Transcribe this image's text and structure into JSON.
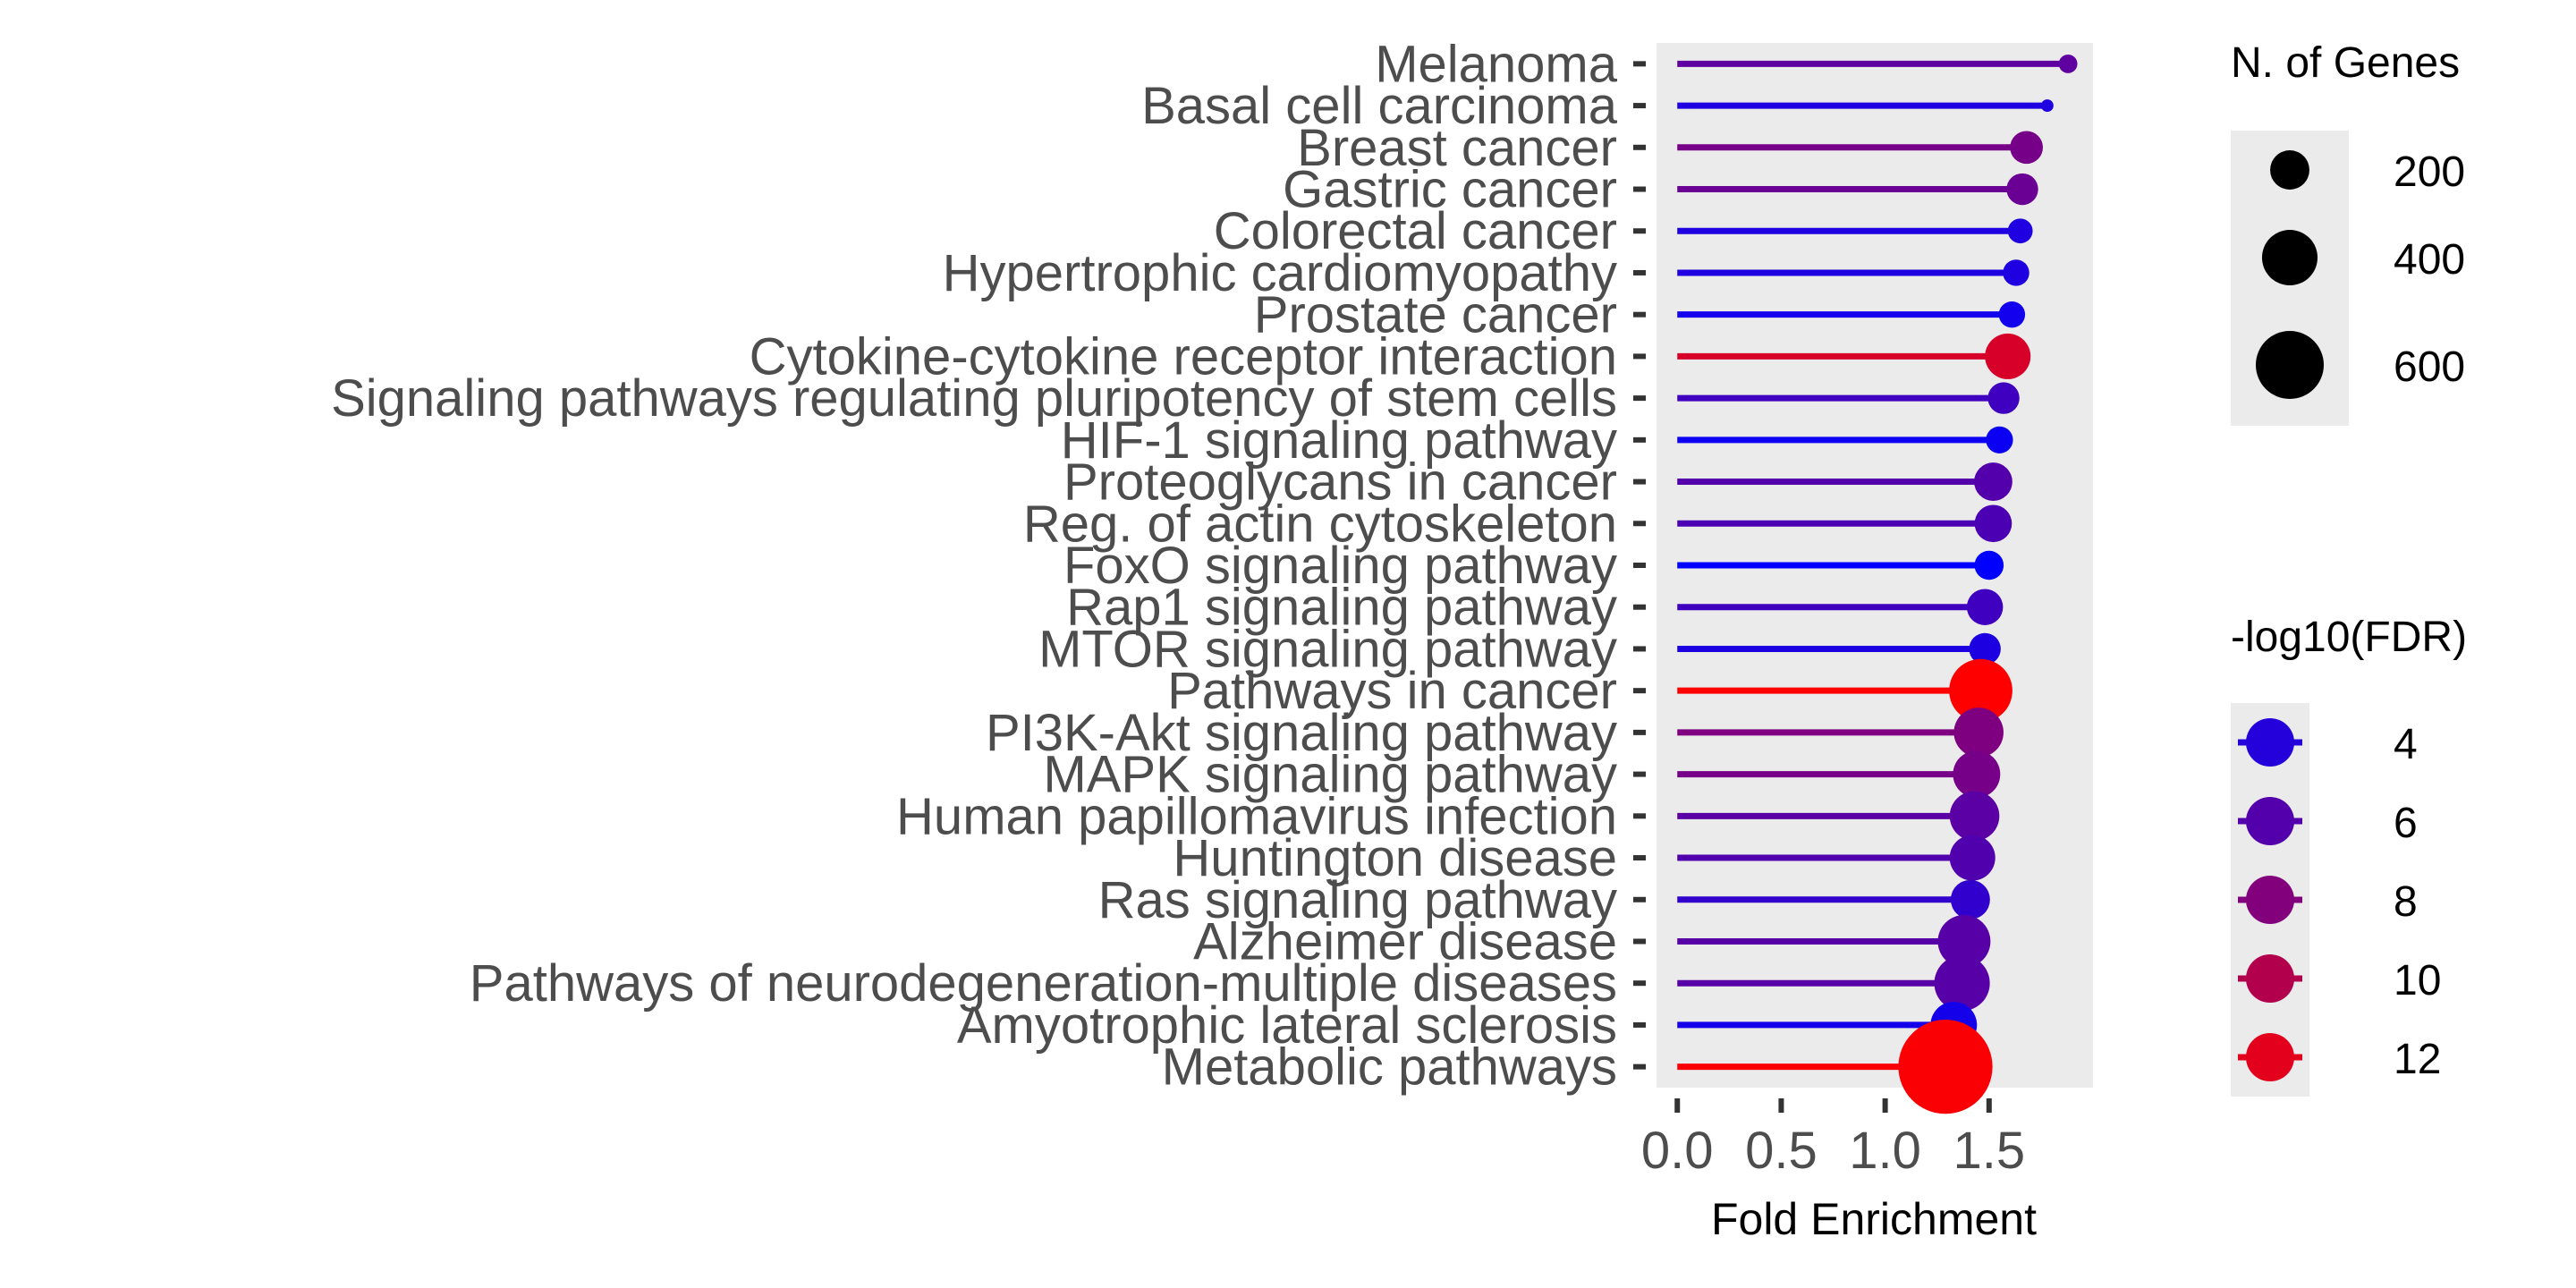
{
  "chart_data": {
    "type": "lollipop",
    "xlabel": "Fold Enrichment",
    "ylabel": "",
    "xlim": [
      -0.1,
      2.0
    ],
    "x_ticks": [
      {
        "value": 0.0,
        "label": "0.0"
      },
      {
        "value": 0.5,
        "label": "0.5"
      },
      {
        "value": 1.0,
        "label": "1.0"
      },
      {
        "value": 1.5,
        "label": "1.5"
      }
    ],
    "grid": false,
    "panel_background": "#ebebeb",
    "color_scale": {
      "low": "#0000ff",
      "high": "#ff0000",
      "min": 2.5,
      "max": 13.2
    },
    "pathways": [
      {
        "name": "Melanoma",
        "fold_enrichment": 1.88,
        "n_genes": 45,
        "neg_log10_fdr": 6.5
      },
      {
        "name": "Basal cell carcinoma",
        "fold_enrichment": 1.78,
        "n_genes": 20,
        "neg_log10_fdr": 3.8
      },
      {
        "name": "Breast cancer",
        "fold_enrichment": 1.68,
        "n_genes": 140,
        "neg_log10_fdr": 7.5
      },
      {
        "name": "Gastric cancer",
        "fold_enrichment": 1.66,
        "n_genes": 130,
        "neg_log10_fdr": 7.0
      },
      {
        "name": "Colorectal cancer",
        "fold_enrichment": 1.65,
        "n_genes": 80,
        "neg_log10_fdr": 3.8
      },
      {
        "name": "Hypertrophic cardiomyopathy",
        "fold_enrichment": 1.63,
        "n_genes": 90,
        "neg_log10_fdr": 3.8
      },
      {
        "name": "Prostate cancer",
        "fold_enrichment": 1.61,
        "n_genes": 90,
        "neg_log10_fdr": 3.3
      },
      {
        "name": "Cytokine-cytokine receptor interaction",
        "fold_enrichment": 1.59,
        "n_genes": 270,
        "neg_log10_fdr": 11.5
      },
      {
        "name": "Signaling pathways regulating pluripotency of stem cells",
        "fold_enrichment": 1.57,
        "n_genes": 130,
        "neg_log10_fdr": 5.2
      },
      {
        "name": "HIF-1 signaling pathway",
        "fold_enrichment": 1.55,
        "n_genes": 95,
        "neg_log10_fdr": 3.0
      },
      {
        "name": "Proteoglycans in cancer",
        "fold_enrichment": 1.52,
        "n_genes": 190,
        "neg_log10_fdr": 6.0
      },
      {
        "name": "Reg. of actin cytoskeleton",
        "fold_enrichment": 1.52,
        "n_genes": 180,
        "neg_log10_fdr": 5.7
      },
      {
        "name": "FoxO signaling pathway",
        "fold_enrichment": 1.5,
        "n_genes": 110,
        "neg_log10_fdr": 2.5
      },
      {
        "name": "Rap1 signaling pathway",
        "fold_enrichment": 1.48,
        "n_genes": 170,
        "neg_log10_fdr": 5.2
      },
      {
        "name": "MTOR signaling pathway",
        "fold_enrichment": 1.48,
        "n_genes": 130,
        "neg_log10_fdr": 3.7
      },
      {
        "name": "Pathways in cancer",
        "fold_enrichment": 1.46,
        "n_genes": 520,
        "neg_log10_fdr": 13.2
      },
      {
        "name": "PI3K-Akt signaling pathway",
        "fold_enrichment": 1.45,
        "n_genes": 320,
        "neg_log10_fdr": 7.8
      },
      {
        "name": "MAPK signaling pathway",
        "fold_enrichment": 1.44,
        "n_genes": 290,
        "neg_log10_fdr": 7.5
      },
      {
        "name": "Human papillomavirus infection",
        "fold_enrichment": 1.43,
        "n_genes": 320,
        "neg_log10_fdr": 6.3
      },
      {
        "name": "Huntington disease",
        "fold_enrichment": 1.42,
        "n_genes": 270,
        "neg_log10_fdr": 5.9
      },
      {
        "name": "Ras signaling pathway",
        "fold_enrichment": 1.41,
        "n_genes": 200,
        "neg_log10_fdr": 4.6
      },
      {
        "name": "Alzheimer disease",
        "fold_enrichment": 1.38,
        "n_genes": 360,
        "neg_log10_fdr": 6.2
      },
      {
        "name": "Pathways of neurodegeneration-multiple diseases",
        "fold_enrichment": 1.37,
        "n_genes": 400,
        "neg_log10_fdr": 6.2
      },
      {
        "name": "Amyotrophic lateral sclerosis",
        "fold_enrichment": 1.33,
        "n_genes": 280,
        "neg_log10_fdr": 3.4
      },
      {
        "name": "Metabolic pathways",
        "fold_enrichment": 1.29,
        "n_genes": 1150,
        "neg_log10_fdr": 13.0
      }
    ],
    "legend_size": {
      "title": "N. of Genes",
      "entries": [
        {
          "label": "200",
          "value": 200
        },
        {
          "label": "400",
          "value": 400
        },
        {
          "label": "600",
          "value": 600
        }
      ]
    },
    "legend_color": {
      "title": "-log10(FDR)",
      "entries": [
        {
          "label": "4",
          "value": 4
        },
        {
          "label": "6",
          "value": 6
        },
        {
          "label": "8",
          "value": 8
        },
        {
          "label": "10",
          "value": 10
        },
        {
          "label": "12",
          "value": 12
        }
      ]
    },
    "legend_placement": "right"
  }
}
